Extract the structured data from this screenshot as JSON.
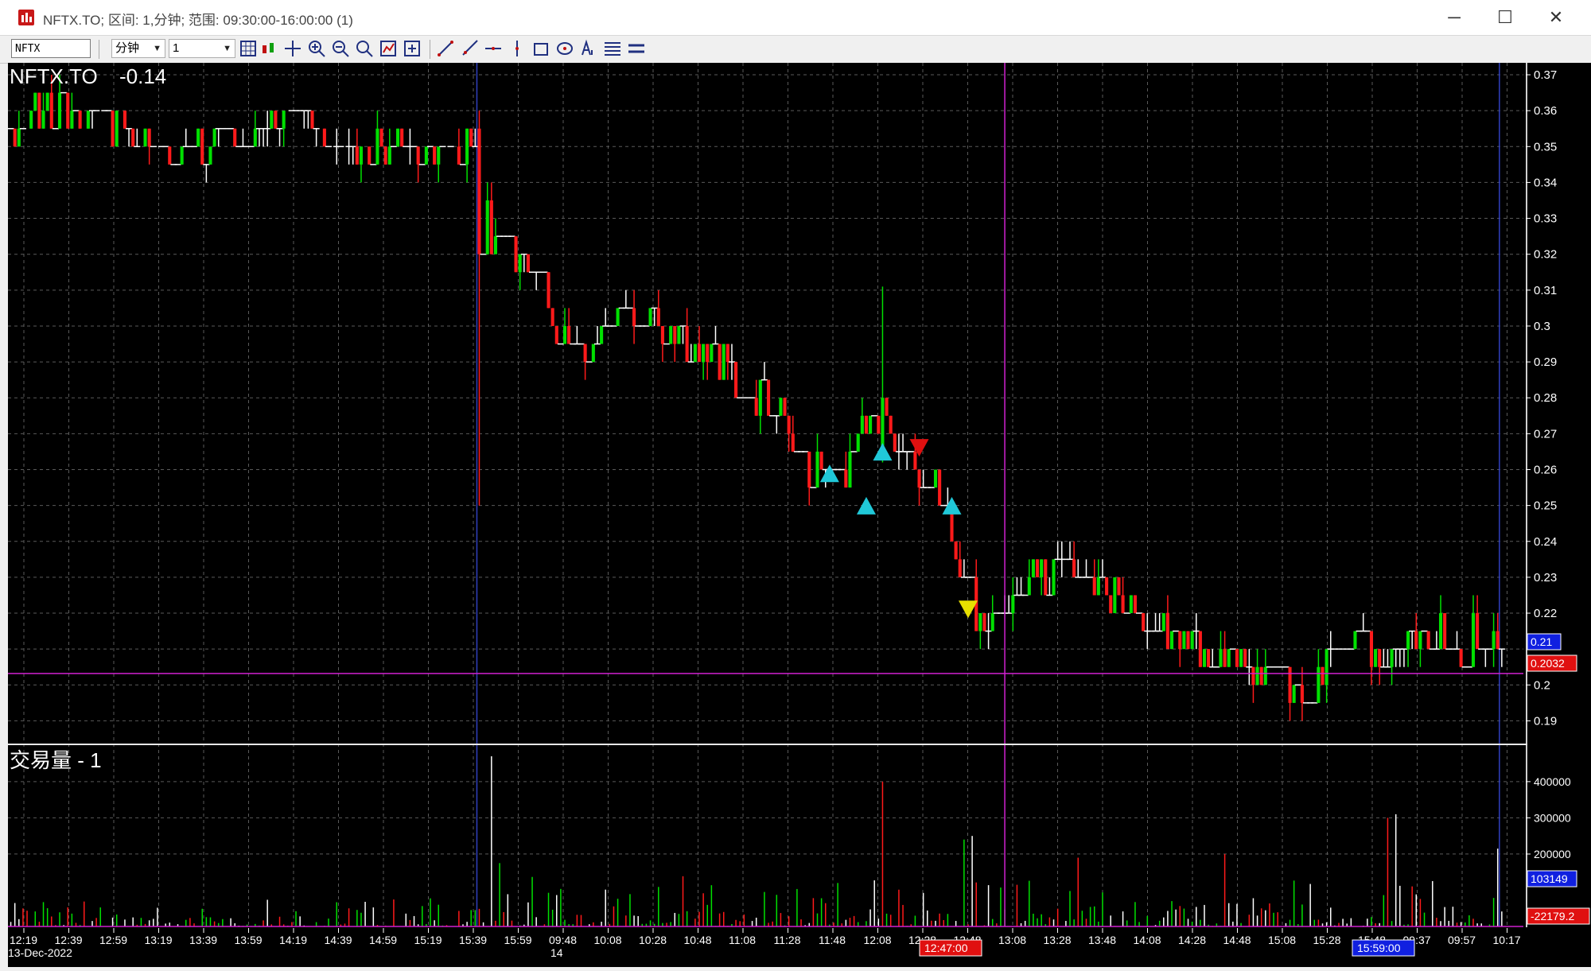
{
  "window": {
    "title": "NFTX.TO; 区间: 1,分钟; 范围: 09:30:00-16:00:00 (1)",
    "minimize_glyph": "─",
    "maximize_glyph": "☐",
    "close_glyph": "✕"
  },
  "toolbar": {
    "symbol_value": "NFTX",
    "interval_unit": "分钟",
    "interval_value": "1",
    "icons": [
      "grid-icon",
      "candlestick-icon",
      "crosshair-icon",
      "zoom-in-icon",
      "zoom-out-icon",
      "zoom-fit-icon",
      "chart-settings-icon",
      "add-icon",
      "trendline-icon",
      "ray-icon",
      "horizontal-line-icon",
      "vertical-line-icon",
      "rectangle-icon",
      "ellipse-icon",
      "text-icon",
      "fibonacci-icon",
      "channel-icon"
    ]
  },
  "chart": {
    "symbol_label": "NFTX.TO",
    "change_label": "-0.14",
    "volume_panel_title": "交易量 - 1",
    "price_axis": {
      "ticks": [
        "0.37",
        "0.36",
        "0.35",
        "0.34",
        "0.33",
        "0.32",
        "0.31",
        "0.3",
        "0.29",
        "0.28",
        "0.27",
        "0.26",
        "0.25",
        "0.24",
        "0.23",
        "0.22",
        "0.2",
        "0.19"
      ]
    },
    "volume_axis": {
      "ticks": [
        "400000",
        "300000",
        "200000"
      ]
    },
    "badges": {
      "last_price": "0.21",
      "crosshair_price": "0.2032",
      "last_volume": "103149",
      "crosshair_volume": "-22179.2",
      "crosshair_time": "12:47:00",
      "last_time": "15:59:00"
    },
    "time_axis": {
      "labels": [
        "12:19",
        "12:39",
        "12:59",
        "13:19",
        "13:39",
        "13:59",
        "14:19",
        "14:39",
        "14:59",
        "15:19",
        "15:39",
        "15:59",
        "09:48",
        "10:08",
        "10:28",
        "10:48",
        "11:08",
        "11:28",
        "11:48",
        "12:08",
        "12:28",
        "12:48",
        "13:08",
        "13:28",
        "13:48",
        "14:08",
        "14:28",
        "14:48",
        "15:08",
        "15:28",
        "15:48",
        "09:37",
        "09:57",
        "10:17"
      ],
      "date_label_1": "13-Dec-2022",
      "date_label_2": "14"
    },
    "colors": {
      "up": "#00e000",
      "down": "#ff1a1a",
      "flat": "#ffffff",
      "signal_buy": "#20c8d8",
      "signal_sell_red": "#e01010",
      "signal_sell_yellow": "#e8e000",
      "crosshair": "#d020d0",
      "session_line": "#3040c0"
    }
  },
  "chart_data": {
    "type": "candlestick",
    "title": "NFTX.TO",
    "price_range": [
      0.185,
      0.372
    ],
    "volume_range": [
      0,
      470000
    ],
    "grid": true,
    "legend": "none",
    "price_path": [
      {
        "t": 0,
        "p": 0.355
      },
      {
        "t": 8,
        "p": 0.36
      },
      {
        "t": 12,
        "p": 0.36
      },
      {
        "t": 20,
        "p": 0.356
      },
      {
        "t": 30,
        "p": 0.354
      },
      {
        "t": 36,
        "p": 0.348
      },
      {
        "t": 44,
        "p": 0.35
      },
      {
        "t": 52,
        "p": 0.355
      },
      {
        "t": 62,
        "p": 0.352
      },
      {
        "t": 72,
        "p": 0.357
      },
      {
        "t": 82,
        "p": 0.35
      },
      {
        "t": 94,
        "p": 0.35
      },
      {
        "t": 104,
        "p": 0.35
      },
      {
        "t": 110,
        "p": 0.35
      },
      {
        "t": 115,
        "p": 0.355
      },
      {
        "t": 118,
        "p": 0.32
      },
      {
        "t": 128,
        "p": 0.315
      },
      {
        "t": 134,
        "p": 0.3
      },
      {
        "t": 140,
        "p": 0.292
      },
      {
        "t": 148,
        "p": 0.302
      },
      {
        "t": 158,
        "p": 0.305
      },
      {
        "t": 166,
        "p": 0.296
      },
      {
        "t": 174,
        "p": 0.29
      },
      {
        "t": 180,
        "p": 0.282
      },
      {
        "t": 188,
        "p": 0.275
      },
      {
        "t": 194,
        "p": 0.262
      },
      {
        "t": 200,
        "p": 0.258
      },
      {
        "t": 206,
        "p": 0.26
      },
      {
        "t": 210,
        "p": 0.275
      },
      {
        "t": 214,
        "p": 0.276
      },
      {
        "t": 220,
        "p": 0.262
      },
      {
        "t": 226,
        "p": 0.258
      },
      {
        "t": 230,
        "p": 0.248
      },
      {
        "t": 234,
        "p": 0.224
      },
      {
        "t": 240,
        "p": 0.218
      },
      {
        "t": 246,
        "p": 0.226
      },
      {
        "t": 252,
        "p": 0.232
      },
      {
        "t": 260,
        "p": 0.228
      },
      {
        "t": 268,
        "p": 0.224
      },
      {
        "t": 276,
        "p": 0.22
      },
      {
        "t": 284,
        "p": 0.214
      },
      {
        "t": 292,
        "p": 0.209
      },
      {
        "t": 300,
        "p": 0.206
      },
      {
        "t": 308,
        "p": 0.204
      },
      {
        "t": 314,
        "p": 0.196
      },
      {
        "t": 320,
        "p": 0.202
      },
      {
        "t": 326,
        "p": 0.208
      },
      {
        "t": 334,
        "p": 0.212
      },
      {
        "t": 344,
        "p": 0.21
      },
      {
        "t": 354,
        "p": 0.213
      },
      {
        "t": 362,
        "p": 0.214
      },
      {
        "t": 366,
        "p": 0.21
      }
    ],
    "volume_spikes": [
      {
        "t": 118,
        "v": 470000
      },
      {
        "t": 214,
        "v": 400000
      },
      {
        "t": 340,
        "v": 310000
      },
      {
        "t": 338,
        "v": 300000
      },
      {
        "t": 236,
        "v": 250000
      },
      {
        "t": 234,
        "v": 240000
      },
      {
        "t": 365,
        "v": 215000
      },
      {
        "t": 298,
        "v": 200000
      },
      {
        "t": 262,
        "v": 190000
      },
      {
        "t": 120,
        "v": 175000
      }
    ],
    "signals": [
      {
        "t": 201,
        "p": 0.2585,
        "kind": "buy"
      },
      {
        "t": 210,
        "p": 0.2495,
        "kind": "buy"
      },
      {
        "t": 214,
        "p": 0.2645,
        "kind": "buy"
      },
      {
        "t": 231,
        "p": 0.2495,
        "kind": "buy"
      },
      {
        "t": 223,
        "p": 0.2665,
        "kind": "sell"
      },
      {
        "t": 235,
        "p": 0.2215,
        "kind": "sell-yellow"
      }
    ],
    "crosshair": {
      "t": 244,
      "p": 0.2032
    },
    "session_breaks": [
      115,
      366
    ]
  }
}
